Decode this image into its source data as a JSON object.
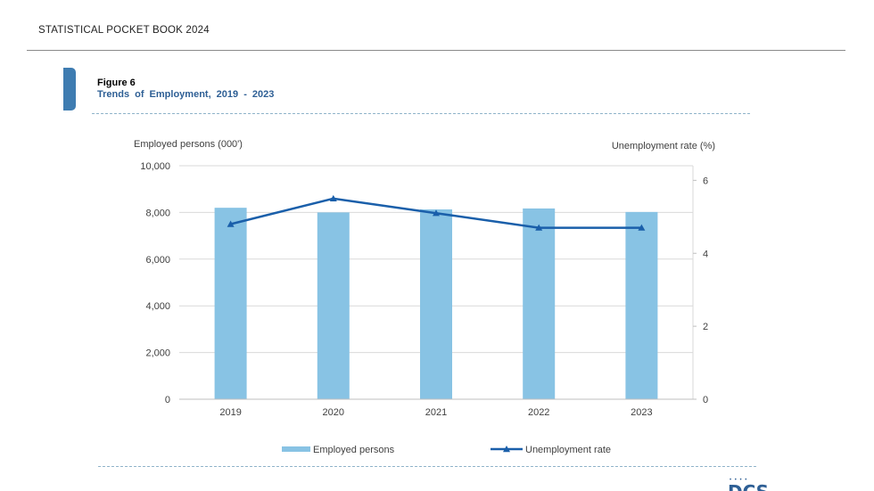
{
  "header": {
    "title": "STATISTICAL POCKET BOOK 2024"
  },
  "figure": {
    "number": "Figure 6",
    "title": "Trends  of  Employment, 2019 - 2023"
  },
  "logo": {
    "text": "DCS"
  },
  "colors": {
    "bars": "#88c3e4",
    "line": "#1a5faa",
    "grid": "#d9d9d9",
    "accent_tab": "#3e7cb1",
    "title": "#2e5f95"
  },
  "chart_data": {
    "type": "bar",
    "categories": [
      "2019",
      "2020",
      "2021",
      "2022",
      "2023"
    ],
    "y_left_label": "Employed persons (000')",
    "y_right_label": "Unemployment rate (%)",
    "y_left_lim": [
      0,
      10000
    ],
    "y_left_ticks": [
      0,
      2000,
      4000,
      6000,
      8000,
      10000
    ],
    "y_left_tick_labels": [
      "0",
      "2,000",
      "4,000",
      "6,000",
      "8,000",
      "10,000"
    ],
    "y_right_lim": [
      0,
      6.4
    ],
    "y_right_ticks": [
      0,
      2,
      4,
      6
    ],
    "y_right_tick_labels": [
      "0",
      "2",
      "4",
      "6"
    ],
    "grid": true,
    "legend_position": "bottom",
    "series": [
      {
        "name": "Employed persons",
        "type": "bar",
        "axis": "left",
        "values": [
          8200,
          8000,
          8130,
          8170,
          8020
        ]
      },
      {
        "name": "Unemployment rate",
        "type": "line",
        "axis": "right",
        "marker": "triangle",
        "values": [
          4.8,
          5.5,
          5.1,
          4.7,
          4.7
        ]
      }
    ]
  }
}
